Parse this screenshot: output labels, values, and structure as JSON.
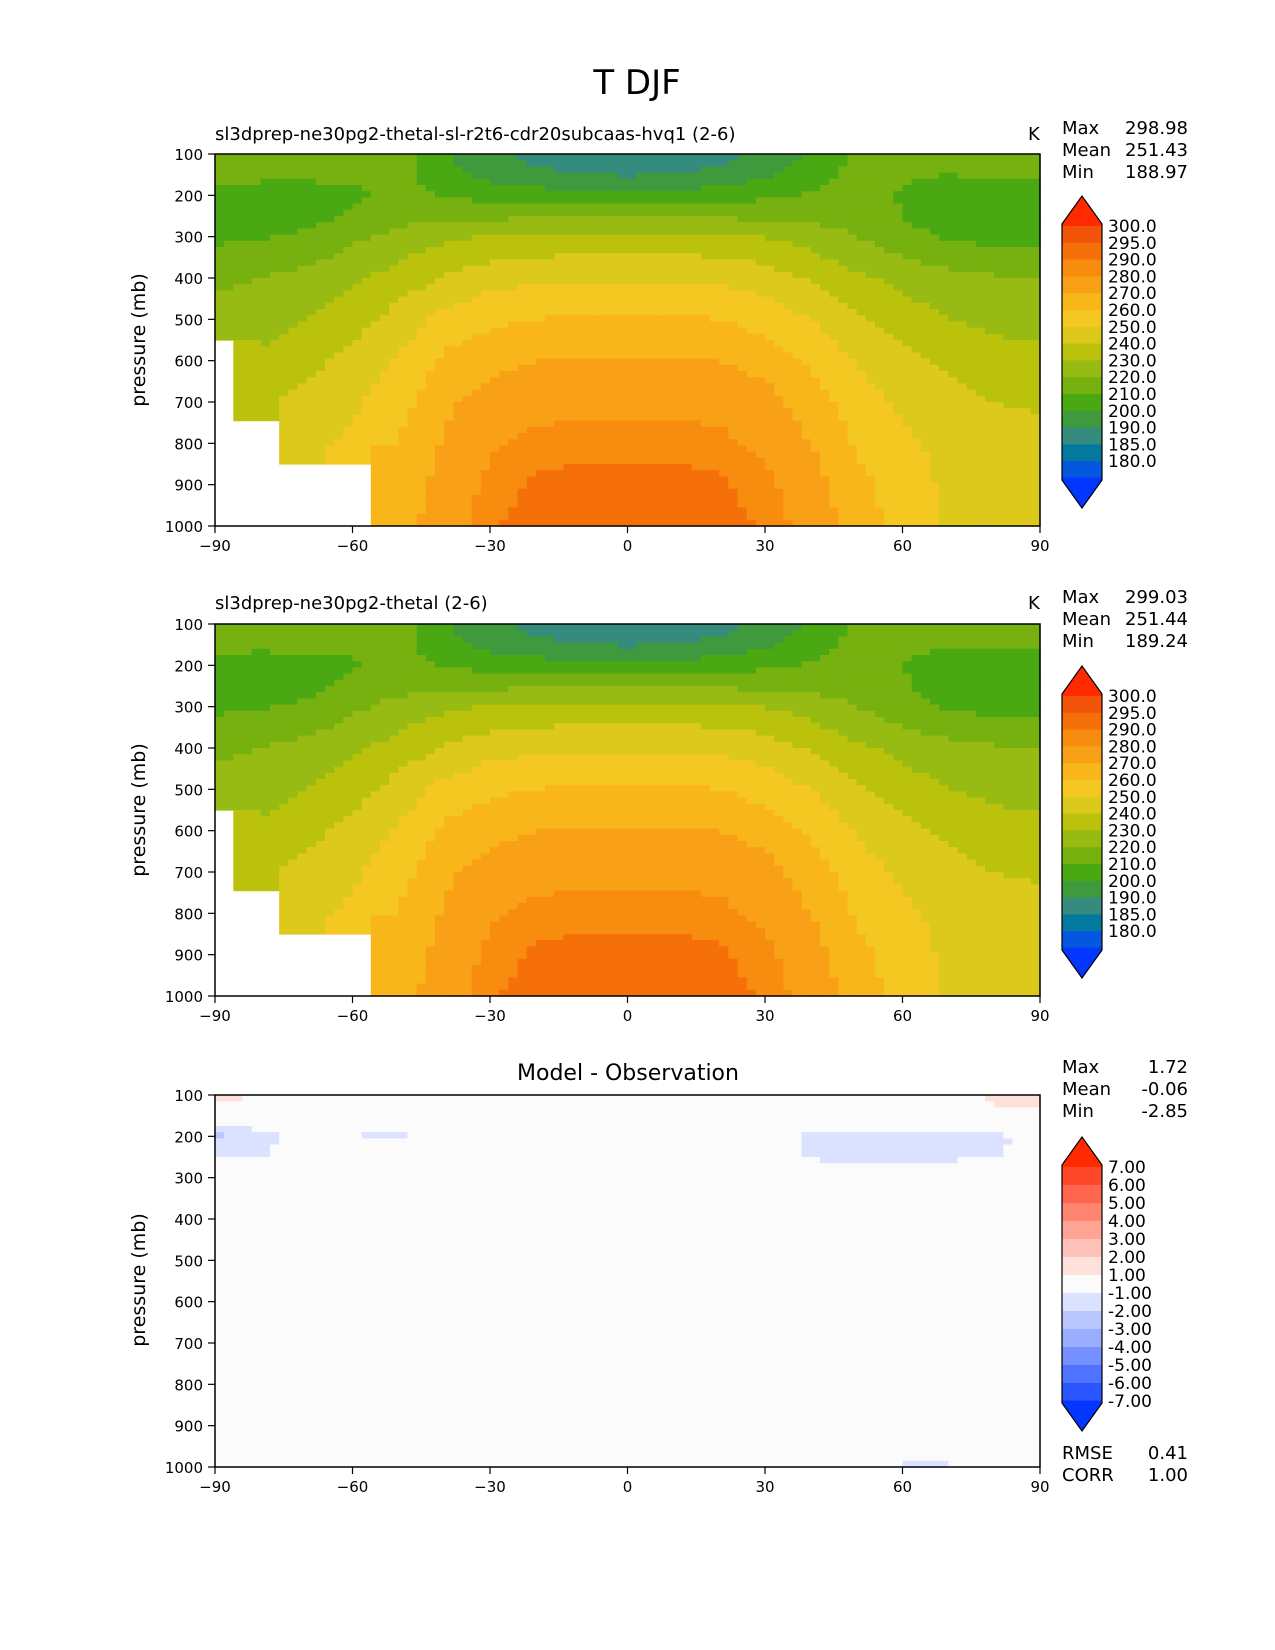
{
  "figure": {
    "title": "T DJF"
  },
  "colors": {
    "abs_cmap": [
      "#0336ff",
      "#0458e0",
      "#04799f",
      "#358c7e",
      "#3e9a3c",
      "#4aa813",
      "#76b110",
      "#97bb12",
      "#bac20b",
      "#dcc91b",
      "#f4c821",
      "#f8b61a",
      "#f9a116",
      "#f88c0e",
      "#f6700a",
      "#f2550a",
      "#ff2a00"
    ],
    "diff_cmap": [
      "#0336ff",
      "#2a55ff",
      "#4f72ff",
      "#7590ff",
      "#9aaeff",
      "#bac7ff",
      "#dbe2ff",
      "#fbfbfb",
      "#ffe1dc",
      "#ffc2b8",
      "#ffa394",
      "#ff8571",
      "#ff664d",
      "#ff4729",
      "#ff2a00"
    ]
  },
  "axes": {
    "ylabel": "pressure (mb)",
    "yticks": [
      "100",
      "200",
      "300",
      "400",
      "500",
      "600",
      "700",
      "800",
      "900",
      "1000"
    ],
    "xticks": [
      "−90",
      "−60",
      "−30",
      "0",
      "30",
      "60",
      "90"
    ]
  },
  "panels": [
    {
      "title": "sl3dprep-ne30pg2-thetal-sl-r2t6-cdr20subcaas-hvq1 (2-6)",
      "units": "K",
      "stats": [
        {
          "label": "Max",
          "value": "298.98"
        },
        {
          "label": "Mean",
          "value": "251.43"
        },
        {
          "label": "Min",
          "value": "188.97"
        }
      ]
    },
    {
      "title": "sl3dprep-ne30pg2-thetal (2-6)",
      "units": "K",
      "stats": [
        {
          "label": "Max",
          "value": "299.03"
        },
        {
          "label": "Mean",
          "value": "251.44"
        },
        {
          "label": "Min",
          "value": "189.24"
        }
      ]
    },
    {
      "title": "Model - Observation",
      "stats": [
        {
          "label": "Max",
          "value": "1.72"
        },
        {
          "label": "Mean",
          "value": "-0.06"
        },
        {
          "label": "Min",
          "value": "-2.85"
        }
      ],
      "metrics": [
        {
          "label": "RMSE",
          "value": "0.41"
        },
        {
          "label": "CORR",
          "value": "1.00"
        }
      ]
    }
  ],
  "colorbars": {
    "abs_labels": [
      "300.0",
      "295.0",
      "290.0",
      "280.0",
      "270.0",
      "260.0",
      "250.0",
      "240.0",
      "230.0",
      "220.0",
      "210.0",
      "200.0",
      "190.0",
      "185.0",
      "180.0"
    ],
    "diff_labels": [
      "7.00",
      "6.00",
      "5.00",
      "4.00",
      "3.00",
      "2.00",
      "1.00",
      "-1.00",
      "-2.00",
      "-3.00",
      "-4.00",
      "-5.00",
      "-6.00",
      "-7.00"
    ]
  },
  "chart_data": [
    {
      "type": "heatmap",
      "title": "sl3dprep-ne30pg2-thetal-sl-r2t6-cdr20subcaas-hvq1 (2-6)",
      "ylabel": "pressure (mb)",
      "xlim": [
        -90,
        90
      ],
      "ylim": [
        1000,
        100
      ],
      "x_label": "latitude",
      "lat": [
        -90,
        -80,
        -70,
        -60,
        -50,
        -40,
        -30,
        -20,
        -10,
        0,
        10,
        20,
        30,
        40,
        50,
        60,
        70,
        80,
        90
      ],
      "lev": [
        100,
        150,
        200,
        250,
        300,
        400,
        500,
        600,
        700,
        800,
        900,
        1000
      ],
      "temperature_K": [
        [
          224,
          224,
          224,
          224,
          226,
          211,
          203,
          196,
          192,
          190,
          191,
          195,
          204,
          212,
          222,
          226,
          225,
          222,
          220
        ],
        [
          224,
          222,
          222,
          222,
          224,
          213,
          207,
          203,
          200,
          199,
          200,
          203,
          208,
          214,
          224,
          221,
          220,
          222,
          221
        ],
        [
          217,
          216,
          216,
          218,
          223,
          219,
          216,
          214,
          214,
          214,
          214,
          215,
          218,
          221,
          224,
          219,
          215,
          214,
          214
        ],
        [
          214,
          214,
          216,
          221,
          227,
          228,
          228,
          228,
          228,
          228,
          228,
          228,
          228,
          227,
          226,
          220,
          214,
          212,
          212
        ],
        [
          218,
          219,
          222,
          228,
          233,
          238,
          241,
          242,
          243,
          243,
          243,
          242,
          240,
          235,
          230,
          223,
          219,
          216,
          216
        ],
        [
          228,
          230,
          233,
          238,
          244,
          251,
          256,
          258,
          259,
          259,
          259,
          258,
          255,
          249,
          242,
          237,
          233,
          231,
          230
        ],
        [
          234,
          236,
          240,
          246,
          254,
          263,
          268,
          270,
          271,
          271,
          271,
          270,
          266,
          260,
          251,
          245,
          240,
          237,
          236
        ],
        [
          null,
          242,
          247,
          253,
          261,
          272,
          277,
          280,
          281,
          281,
          281,
          280,
          276,
          269,
          259,
          253,
          248,
          245,
          243
        ],
        [
          null,
          249,
          253,
          258,
          266,
          278,
          284,
          287,
          288,
          288,
          288,
          287,
          284,
          275,
          265,
          258,
          253,
          250,
          249
        ],
        [
          null,
          null,
          256,
          262,
          271,
          281,
          289,
          292,
          293,
          293,
          293,
          292,
          288,
          280,
          269,
          262,
          257,
          254,
          252
        ],
        [
          null,
          null,
          null,
          null,
          273,
          284,
          292,
          296,
          297,
          297,
          297,
          296,
          292,
          284,
          273,
          265,
          258,
          255,
          253
        ],
        [
          null,
          null,
          null,
          null,
          275,
          286,
          294,
          298,
          299,
          299,
          299,
          298,
          294,
          287,
          276,
          266,
          259,
          255,
          254
        ]
      ]
    },
    {
      "type": "heatmap",
      "title": "sl3dprep-ne30pg2-thetal (2-6)",
      "ylabel": "pressure (mb)",
      "xlim": [
        -90,
        90
      ],
      "ylim": [
        1000,
        100
      ],
      "x_label": "latitude",
      "lat": [
        -90,
        -80,
        -70,
        -60,
        -50,
        -40,
        -30,
        -20,
        -10,
        0,
        10,
        20,
        30,
        40,
        50,
        60,
        70,
        80,
        90
      ],
      "lev": [
        100,
        150,
        200,
        250,
        300,
        400,
        500,
        600,
        700,
        800,
        900,
        1000
      ],
      "temperature_K": [
        [
          224,
          224,
          224,
          224,
          226,
          211,
          203,
          196,
          192,
          190,
          191,
          195,
          204,
          212,
          222,
          226,
          225,
          222,
          220
        ],
        [
          223,
          222,
          222,
          222,
          224,
          213,
          207,
          203,
          200,
          199,
          200,
          203,
          208,
          214,
          224,
          222,
          221,
          222,
          221
        ],
        [
          216,
          216,
          217,
          219,
          223,
          219,
          216,
          214,
          214,
          214,
          214,
          215,
          218,
          221,
          224,
          220,
          216,
          214,
          214
        ],
        [
          214,
          215,
          217,
          222,
          227,
          228,
          228,
          228,
          228,
          228,
          228,
          228,
          228,
          227,
          226,
          221,
          215,
          213,
          213
        ],
        [
          218,
          219,
          222,
          228,
          233,
          238,
          241,
          242,
          243,
          243,
          243,
          242,
          240,
          235,
          230,
          223,
          219,
          216,
          216
        ],
        [
          228,
          230,
          233,
          238,
          244,
          251,
          256,
          258,
          259,
          259,
          259,
          258,
          255,
          249,
          242,
          237,
          233,
          231,
          230
        ],
        [
          234,
          236,
          240,
          246,
          254,
          263,
          268,
          270,
          271,
          271,
          271,
          270,
          266,
          260,
          251,
          245,
          240,
          237,
          236
        ],
        [
          null,
          242,
          247,
          253,
          261,
          272,
          277,
          280,
          281,
          281,
          281,
          280,
          276,
          269,
          259,
          253,
          248,
          245,
          243
        ],
        [
          null,
          249,
          253,
          258,
          266,
          278,
          284,
          287,
          288,
          288,
          288,
          287,
          284,
          275,
          265,
          258,
          253,
          250,
          249
        ],
        [
          null,
          null,
          256,
          262,
          271,
          281,
          289,
          292,
          293,
          293,
          293,
          292,
          288,
          280,
          269,
          262,
          257,
          254,
          252
        ],
        [
          null,
          null,
          null,
          null,
          273,
          284,
          292,
          296,
          297,
          297,
          297,
          296,
          292,
          284,
          273,
          265,
          258,
          255,
          253
        ],
        [
          null,
          null,
          null,
          null,
          275,
          286,
          294,
          298,
          299,
          299,
          299,
          298,
          294,
          287,
          276,
          266,
          259,
          255,
          254
        ]
      ]
    },
    {
      "type": "heatmap",
      "title": "Model - Observation",
      "ylabel": "pressure (mb)",
      "xlim": [
        -90,
        90
      ],
      "ylim": [
        1000,
        100
      ],
      "x_label": "latitude",
      "lat": [
        -90,
        -80,
        -70,
        -60,
        -50,
        -40,
        -30,
        -20,
        -10,
        0,
        10,
        20,
        30,
        40,
        50,
        60,
        70,
        80,
        90
      ],
      "lev": [
        100,
        150,
        200,
        250,
        300,
        400,
        500,
        600,
        700,
        800,
        900,
        1000
      ],
      "difference_K": [
        [
          1.2,
          1.1,
          0.3,
          0.1,
          0,
          0,
          0,
          0,
          0,
          0,
          0,
          0,
          0,
          0,
          0,
          0,
          0.4,
          1.3,
          1.5
        ],
        [
          0.2,
          0.1,
          0,
          0,
          0,
          0,
          0,
          0,
          0,
          0,
          0,
          0,
          0,
          0,
          0,
          0,
          0.2,
          0.6,
          0.8
        ],
        [
          -2.3,
          -1.4,
          -0.6,
          -1.0,
          -1.2,
          0,
          0,
          0,
          0,
          0,
          0,
          0,
          0,
          -1.2,
          -1.4,
          -1.3,
          -1.2,
          -1.1,
          -1.0
        ],
        [
          -1.1,
          -1.0,
          -0.5,
          -1.0,
          -0.3,
          0,
          0,
          0,
          0,
          0,
          0,
          0,
          0,
          -1.1,
          -1.4,
          -1.3,
          -1.2,
          -1.1,
          -0.5
        ],
        [
          0,
          0,
          0,
          0,
          0,
          0,
          0,
          0,
          0,
          0,
          0,
          0,
          0,
          0,
          0,
          0,
          0,
          0,
          0
        ],
        [
          0,
          0,
          0,
          0,
          0,
          0,
          0,
          0,
          0,
          0,
          0,
          0,
          0,
          0,
          0,
          0,
          0,
          0,
          0
        ],
        [
          0,
          0,
          0,
          0,
          0,
          0,
          0,
          0,
          0,
          0,
          0,
          0,
          0,
          0,
          0,
          0,
          0,
          0,
          0
        ],
        [
          0,
          0,
          0,
          0,
          0,
          0,
          0,
          0,
          0,
          0,
          0,
          0,
          0,
          0,
          0,
          0,
          0,
          0,
          0
        ],
        [
          0,
          0,
          0,
          0,
          0,
          0,
          0,
          0,
          0,
          0,
          0,
          0,
          0,
          0,
          0,
          0,
          0,
          0,
          0
        ],
        [
          0,
          0,
          0,
          0,
          0,
          0,
          0,
          0,
          0,
          0,
          0,
          0,
          0,
          0,
          0,
          0,
          0,
          0,
          0
        ],
        [
          0,
          0,
          0,
          0,
          0,
          0,
          0,
          0,
          0,
          0,
          0,
          0,
          0,
          0,
          0,
          0,
          0,
          0,
          0
        ],
        [
          0,
          0,
          0,
          0,
          -0.8,
          0,
          0,
          0,
          0,
          0,
          0,
          0,
          0,
          0,
          0,
          -1.1,
          -1.2,
          0,
          -1.0
        ]
      ]
    }
  ]
}
